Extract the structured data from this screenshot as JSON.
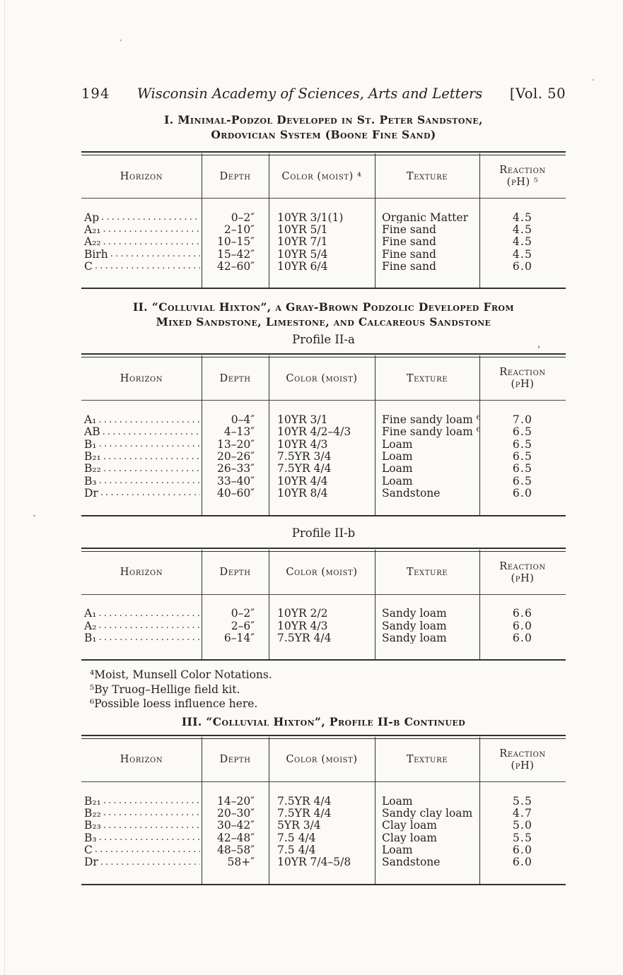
{
  "header": {
    "page_number": "194",
    "journal_title": "Wisconsin Academy of Sciences, Arts and Letters",
    "volume": "[Vol. 50"
  },
  "captions": {
    "table1": [
      "I. Minimal-Podzol Developed in St. Peter Sandstone,",
      "Ordovician System (Boone Fine Sand)"
    ],
    "table2": [
      "II. “Colluvial Hixton”, a Gray-Brown Podzolic Developed From",
      "Mixed Sandstone, Limestone, and Calcareous Sandstone"
    ],
    "profile_a": "Profile II-a",
    "profile_b": "Profile II-b",
    "table3": "III. “Colluvial Hixton”, Profile II-b Continued"
  },
  "tables": [
    {
      "id": "minimal-podzol",
      "columns": [
        {
          "label": "Horizon"
        },
        {
          "label": "Depth"
        },
        {
          "label": "Color (moist) ⁴"
        },
        {
          "label": "Texture"
        },
        {
          "label": "Reaction",
          "label2": "(pH) ⁵"
        }
      ],
      "rows": [
        [
          "Ap",
          "0–2″",
          "10YR 3/1(1)",
          "Organic Matter",
          "4.5"
        ],
        [
          "A₂₁",
          "2–10″",
          "10YR 5/1",
          "Fine sand",
          "4.5"
        ],
        [
          "A₂₂",
          "10–15″",
          "10YR 7/1",
          "Fine sand",
          "4.5"
        ],
        [
          "Birh",
          "15–42″",
          "10YR 5/4",
          "Fine sand",
          "4.5"
        ],
        [
          "C",
          "42–60″",
          "10YR 6/4",
          "Fine sand",
          "6.0"
        ]
      ]
    },
    {
      "id": "colluvial-hixton-profile-iia",
      "columns": [
        {
          "label": "Horizon"
        },
        {
          "label": "Depth"
        },
        {
          "label": "Color (moist)"
        },
        {
          "label": "Texture"
        },
        {
          "label": "Reaction",
          "label2": "(pH)"
        }
      ],
      "rows": [
        [
          "A₁",
          "0–4″",
          "10YR 3/1",
          "Fine sandy loam ⁶",
          "7.0"
        ],
        [
          "AB",
          "4–13″",
          "10YR 4/2–4/3",
          "Fine sandy loam ⁶",
          "6.5"
        ],
        [
          "B₁",
          "13–20″",
          "10YR 4/3",
          "Loam",
          "6.5"
        ],
        [
          "B₂₁",
          "20–26″",
          "7.5YR 3/4",
          "Loam",
          "6.5"
        ],
        [
          "B₂₂",
          "26–33″",
          "7.5YR 4/4",
          "Loam",
          "6.5"
        ],
        [
          "B₃",
          "33–40″",
          "10YR 4/4",
          "Loam",
          "6.5"
        ],
        [
          "Dr",
          "40–60″",
          "10YR 8/4",
          "Sandstone",
          "6.0"
        ]
      ]
    },
    {
      "id": "colluvial-hixton-profile-iib",
      "columns": [
        {
          "label": "Horizon"
        },
        {
          "label": "Depth"
        },
        {
          "label": "Color (moist)"
        },
        {
          "label": "Texture"
        },
        {
          "label": "Reaction",
          "label2": "(pH)"
        }
      ],
      "rows": [
        [
          "A₁",
          "0–2″",
          "10YR 2/2",
          "Sandy loam",
          "6.6"
        ],
        [
          "A₂",
          "2–6″",
          "10YR 4/3",
          "Sandy loam",
          "6.0"
        ],
        [
          "B₁",
          "6–14″",
          "7.5YR 4/4",
          "Sandy loam",
          "6.0"
        ]
      ]
    },
    {
      "id": "colluvial-hixton-iib-continued",
      "columns": [
        {
          "label": "Horizon"
        },
        {
          "label": "Depth"
        },
        {
          "label": "Color (moist)"
        },
        {
          "label": "Texture"
        },
        {
          "label": "Reaction",
          "label2": "(pH)"
        }
      ],
      "rows": [
        [
          "B₂₁",
          "14–20″",
          "7.5YR 4/4",
          "Loam",
          "5.5"
        ],
        [
          "B₂₂",
          "20–30″",
          "7.5YR 4/4",
          "Sandy clay loam",
          "4.7"
        ],
        [
          "B₂₃",
          "30–42″",
          "5YR 3/4",
          "Clay loam",
          "5.0"
        ],
        [
          "B₃",
          "42–48″",
          "7.5 4/4",
          "Clay loam",
          "5.5"
        ],
        [
          "C",
          "48–58″",
          "7.5 4/4",
          "Loam",
          "6.0"
        ],
        [
          "Dr",
          "58+″",
          "10YR 7/4–5/8",
          "Sandstone",
          "6.0"
        ]
      ]
    }
  ],
  "footnotes": [
    "⁴Moist, Munsell Color Notations.",
    "⁵By Truog–Hellige field kit.",
    "⁶Possible loess influence here."
  ]
}
